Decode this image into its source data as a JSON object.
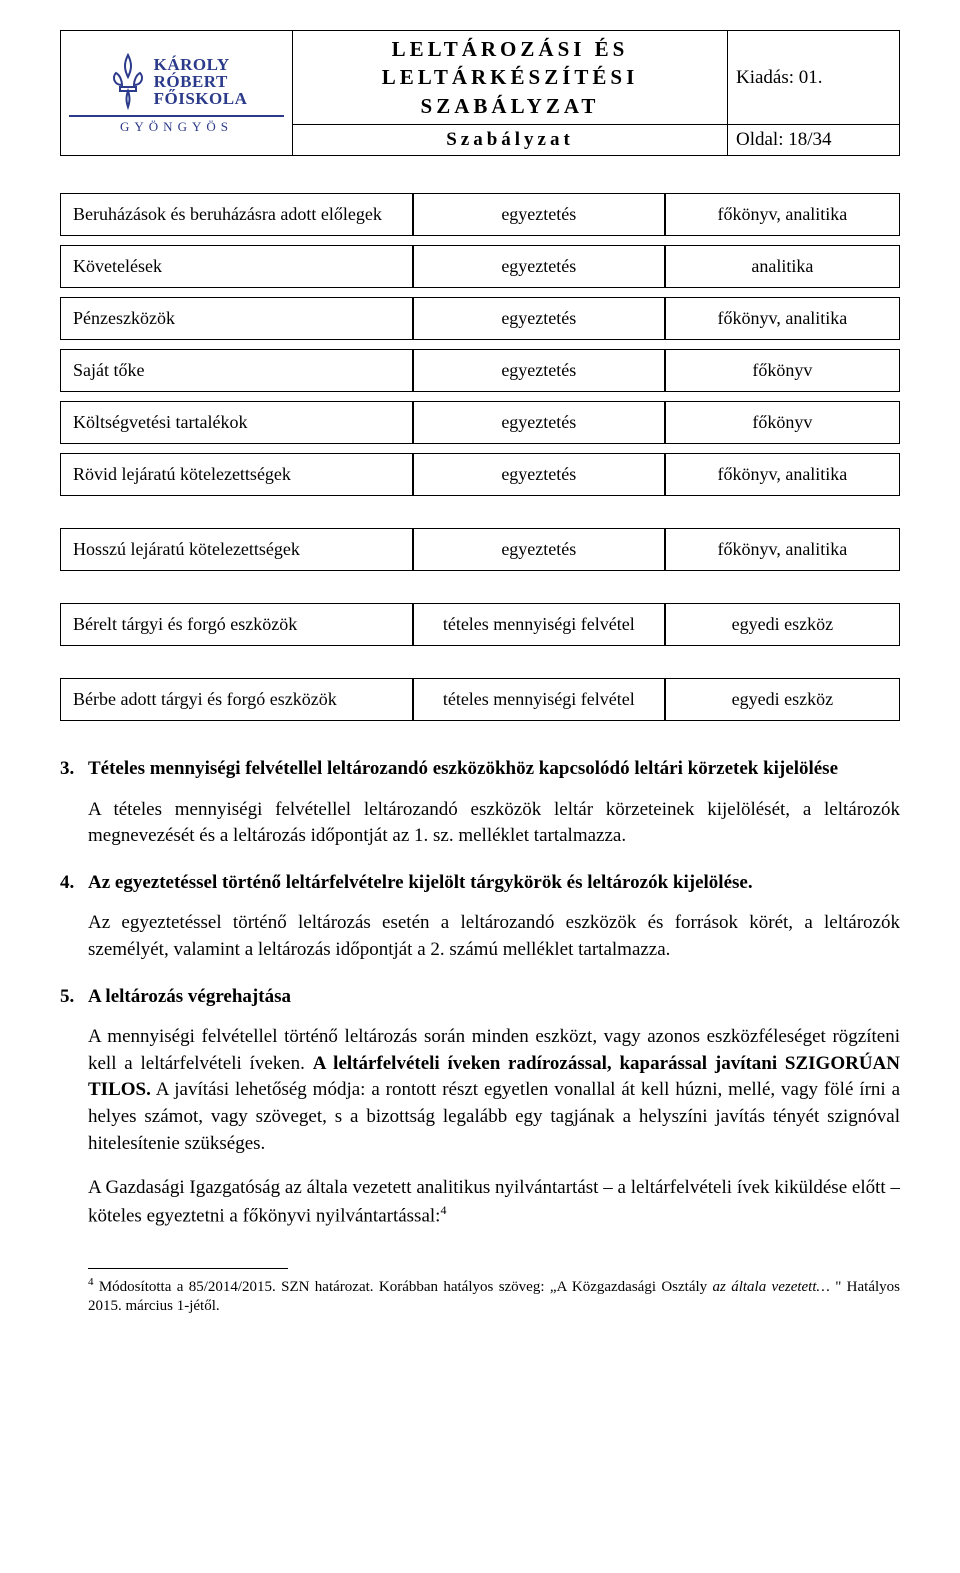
{
  "header": {
    "logo": {
      "line1": "KÁROLY",
      "line2": "RÓBERT",
      "line3": "FŐISKOLA",
      "sub": "GYÖNGYÖS",
      "color": "#2b3a8a"
    },
    "title": "LELTÁROZÁSI ÉS LELTÁRKÉSZÍTÉSI SZABÁLYZAT",
    "subtitle": "Szabályzat",
    "edition_label": "Kiadás: 01.",
    "page_label": "Oldal: 18/34"
  },
  "table": {
    "rows": [
      {
        "c1": "Beruházások és beruházásra adott előlegek",
        "c2": "egyeztetés",
        "c3": "főkönyv, analitika"
      },
      {
        "c1": "Követelések",
        "c2": "egyeztetés",
        "c3": "analitika"
      },
      {
        "c1": "Pénzeszközök",
        "c2": "egyeztetés",
        "c3": "főkönyv, analitika"
      },
      {
        "c1": "Saját tőke",
        "c2": "egyeztetés",
        "c3": "főkönyv"
      },
      {
        "c1": "Költségvetési tartalékok",
        "c2": "egyeztetés",
        "c3": "főkönyv"
      },
      {
        "c1": "Rövid lejáratú kötelezettségek",
        "c2": "egyeztetés",
        "c3": "főkönyv, analitika"
      },
      {
        "c1": "Hosszú lejáratú kötelezettségek",
        "c2": "egyeztetés",
        "c3": "főkönyv, analitika"
      },
      {
        "c1": "Bérelt tárgyi és forgó eszközök",
        "c2": "tételes mennyiségi felvétel",
        "c3": "egyedi eszköz"
      },
      {
        "c1": "Bérbe adott tárgyi és forgó eszközök",
        "c2": "tételes mennyiségi felvétel",
        "c3": "egyedi eszköz"
      }
    ],
    "extra_gap_after": [
      5,
      6,
      7
    ]
  },
  "sections": {
    "s3": {
      "num": "3.",
      "heading": "Tételes mennyiségi felvétellel leltározandó eszközökhöz kapcsolódó leltári körzetek kijelölése",
      "body": "A tételes mennyiségi felvétellel leltározandó eszközök leltár körzeteinek kijelölését, a leltározók megnevezését és a leltározás időpontját az 1. sz. melléklet tartalmazza."
    },
    "s4": {
      "num": "4.",
      "heading": "Az egyeztetéssel történő leltárfelvételre kijelölt tárgykörök és leltározók kijelölése.",
      "body": "Az egyeztetéssel történő leltározás esetén a leltározandó eszközök és források körét, a leltározók személyét, valamint a leltározás időpontját a 2. számú melléklet tartalmazza."
    },
    "s5": {
      "num": "5.",
      "heading": "A leltározás végrehajtása",
      "body_pre": "A mennyiségi felvétellel történő leltározás során minden eszközt, vagy azonos eszközféleséget rögzíteni kell a leltárfelvételi íveken. ",
      "body_bold": "A leltárfelvételi íveken radírozással, kaparással javítani SZIGORÚAN TILOS.",
      "body_post": " A javítási lehetőség módja: a rontott részt egyetlen vonallal át kell húzni, mellé, vagy fölé írni a helyes számot, vagy szöveget, s a bizottság legalább egy tagjának a helyszíni javítás tényét szignóval hitelesítenie szükséges.",
      "body2_pre": "A Gazdasági Igazgatóság az általa vezetett analitikus nyilvántartást – a leltárfelvételi ívek kiküldése előtt – köteles egyeztetni a főkönyvi nyilvántartással:",
      "body2_sup": "4"
    }
  },
  "footnote": {
    "num": "4",
    "text_pre": " Módosította a 85/2014/2015. SZN határozat. Korábban hatályos szöveg: „A Közgazdasági Osztály ",
    "text_italic": "az általa vezetett…",
    "text_post": " \" Hatályos 2015. március 1-jétől."
  }
}
